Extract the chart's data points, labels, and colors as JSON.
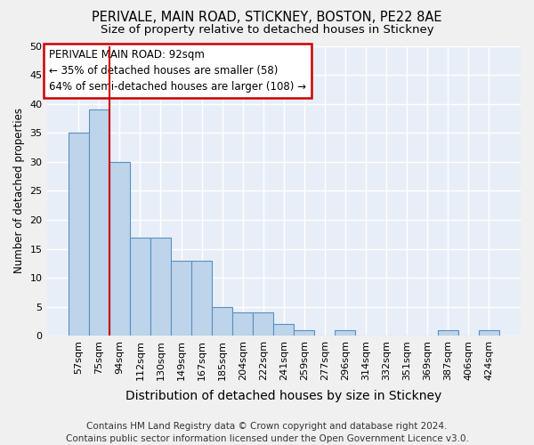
{
  "title1": "PERIVALE, MAIN ROAD, STICKNEY, BOSTON, PE22 8AE",
  "title2": "Size of property relative to detached houses in Stickney",
  "xlabel": "Distribution of detached houses by size in Stickney",
  "ylabel": "Number of detached properties",
  "categories": [
    "57sqm",
    "75sqm",
    "94sqm",
    "112sqm",
    "130sqm",
    "149sqm",
    "167sqm",
    "185sqm",
    "204sqm",
    "222sqm",
    "241sqm",
    "259sqm",
    "277sqm",
    "296sqm",
    "314sqm",
    "332sqm",
    "351sqm",
    "369sqm",
    "387sqm",
    "406sqm",
    "424sqm"
  ],
  "values": [
    35,
    39,
    30,
    17,
    17,
    13,
    13,
    5,
    4,
    4,
    2,
    1,
    0,
    1,
    0,
    0,
    0,
    0,
    1,
    0,
    1
  ],
  "bar_color": "#bdd4ea",
  "bar_edge_color": "#5a8fc2",
  "red_line_index": 2,
  "annotation_line1": "PERIVALE MAIN ROAD: 92sqm",
  "annotation_line2": "← 35% of detached houses are smaller (58)",
  "annotation_line3": "64% of semi-detached houses are larger (108) →",
  "annotation_box_color": "#ffffff",
  "annotation_box_edge": "#cc0000",
  "ylim": [
    0,
    50
  ],
  "yticks": [
    0,
    5,
    10,
    15,
    20,
    25,
    30,
    35,
    40,
    45,
    50
  ],
  "footer": "Contains HM Land Registry data © Crown copyright and database right 2024.\nContains public sector information licensed under the Open Government Licence v3.0.",
  "background_color": "#e8eef8",
  "grid_color": "#ffffff",
  "title1_fontsize": 10.5,
  "title2_fontsize": 9.5,
  "xlabel_fontsize": 10,
  "ylabel_fontsize": 8.5,
  "tick_fontsize": 8,
  "annotation_fontsize": 8.5,
  "footer_fontsize": 7.5
}
